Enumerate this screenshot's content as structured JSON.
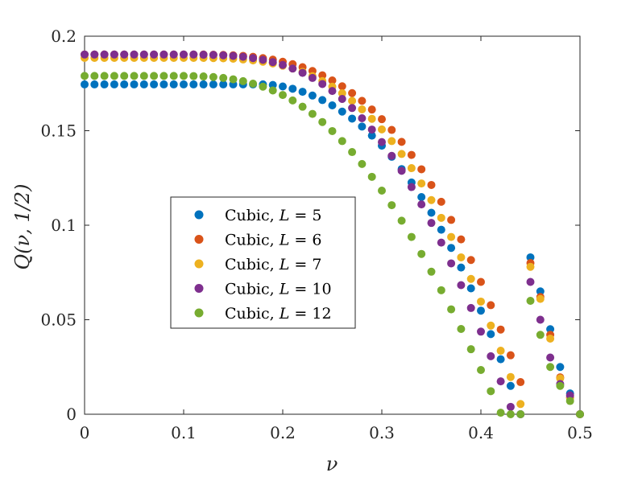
{
  "chart_data": {
    "type": "scatter",
    "title": "",
    "xlabel": "ν",
    "ylabel": "Q(ν, 1/2)",
    "xlim": [
      0,
      0.5
    ],
    "ylim": [
      0,
      0.2
    ],
    "xticks": [
      0,
      0.1,
      0.2,
      0.3,
      0.4,
      0.5
    ],
    "yticks": [
      0,
      0.05,
      0.1,
      0.15,
      0.2
    ],
    "xtick_labels": [
      "0",
      "0.1",
      "0.2",
      "0.3",
      "0.4",
      "0.5"
    ],
    "ytick_labels": [
      "0",
      "0.05",
      "0.1",
      "0.15",
      "0.2"
    ],
    "grid": false,
    "legend_position": "middle-left",
    "x": [
      0,
      0.01,
      0.02,
      0.03,
      0.04,
      0.05,
      0.06,
      0.07,
      0.08,
      0.09,
      0.1,
      0.11,
      0.12,
      0.13,
      0.14,
      0.15,
      0.16,
      0.17,
      0.18,
      0.19,
      0.2,
      0.21,
      0.22,
      0.23,
      0.24,
      0.25,
      0.26,
      0.27,
      0.28,
      0.29,
      0.3,
      0.31,
      0.32,
      0.33,
      0.34,
      0.35,
      0.36,
      0.37,
      0.38,
      0.39,
      0.4,
      0.41,
      0.42,
      0.43,
      0.44,
      0.45,
      0.46,
      0.47,
      0.48,
      0.49,
      0.5
    ],
    "series": [
      {
        "name": "Cubic, L = 5",
        "label_prefix": "Cubic, ",
        "label_var": "L",
        "label_value": "5",
        "color": "#0072BD",
        "values": [
          0.1745,
          0.1745,
          0.1745,
          0.1745,
          0.1745,
          0.1745,
          0.1745,
          0.1745,
          0.1745,
          0.1745,
          0.1745,
          0.1745,
          0.1745,
          0.1745,
          0.1745,
          0.1745,
          0.1745,
          0.1745,
          0.1745,
          0.1742,
          0.1734,
          0.1722,
          0.1706,
          0.1686,
          0.1662,
          0.1634,
          0.1601,
          0.1564,
          0.1522,
          0.1474,
          0.1421,
          0.1362,
          0.1297,
          0.1226,
          0.1149,
          0.1066,
          0.0976,
          0.088,
          0.0776,
          0.0666,
          0.0548,
          0.0424,
          0.0291,
          0.015,
          0.0,
          0.083,
          0.065,
          0.045,
          0.025,
          0.011,
          0.0
        ]
      },
      {
        "name": "Cubic, L = 6",
        "label_prefix": "Cubic, ",
        "label_var": "L",
        "label_value": "6",
        "color": "#D95319",
        "values": [
          0.1903,
          0.1903,
          0.1903,
          0.1903,
          0.1903,
          0.1903,
          0.1903,
          0.1903,
          0.1903,
          0.1903,
          0.1903,
          0.1903,
          0.1903,
          0.1902,
          0.1901,
          0.1899,
          0.1896,
          0.1891,
          0.1884,
          0.1876,
          0.1865,
          0.1852,
          0.1836,
          0.1816,
          0.1793,
          0.1766,
          0.1735,
          0.1699,
          0.1658,
          0.1612,
          0.1561,
          0.1504,
          0.1441,
          0.1372,
          0.1296,
          0.1213,
          0.1124,
          0.1028,
          0.0925,
          0.0816,
          0.07,
          0.0577,
          0.0448,
          0.0312,
          0.017,
          0.08,
          0.062,
          0.042,
          0.0195,
          0.009,
          0.0
        ]
      },
      {
        "name": "Cubic, L = 7",
        "label_prefix": "Cubic, ",
        "label_var": "L",
        "label_value": "7",
        "color": "#EDB120",
        "values": [
          0.1885,
          0.1885,
          0.1885,
          0.1885,
          0.1885,
          0.1885,
          0.1885,
          0.1885,
          0.1885,
          0.1885,
          0.1885,
          0.1885,
          0.1885,
          0.1884,
          0.1883,
          0.1881,
          0.1877,
          0.1872,
          0.1865,
          0.1856,
          0.1844,
          0.1829,
          0.1811,
          0.1789,
          0.1763,
          0.1733,
          0.1698,
          0.1658,
          0.1613,
          0.1563,
          0.1507,
          0.1445,
          0.1377,
          0.1302,
          0.1221,
          0.1133,
          0.1039,
          0.0938,
          0.083,
          0.0716,
          0.0596,
          0.0469,
          0.0336,
          0.0197,
          0.0054,
          0.078,
          0.061,
          0.04,
          0.019,
          0.0085,
          0.0
        ]
      },
      {
        "name": "Cubic, L = 10",
        "label_prefix": "Cubic, ",
        "label_var": "L",
        "label_value": "10",
        "color": "#7E2F8E",
        "values": [
          0.1903,
          0.1903,
          0.1903,
          0.1903,
          0.1903,
          0.1903,
          0.1903,
          0.1903,
          0.1903,
          0.1903,
          0.1903,
          0.1903,
          0.1902,
          0.1901,
          0.1899,
          0.1896,
          0.1891,
          0.1884,
          0.1875,
          0.1863,
          0.1848,
          0.1829,
          0.1806,
          0.1779,
          0.1747,
          0.171,
          0.1668,
          0.162,
          0.1566,
          0.1506,
          0.144,
          0.1367,
          0.1288,
          0.1202,
          0.111,
          0.1012,
          0.0908,
          0.0798,
          0.0683,
          0.0562,
          0.0437,
          0.0307,
          0.0174,
          0.0039,
          0.0,
          0.07,
          0.05,
          0.03,
          0.016,
          0.01,
          0.0
        ]
      },
      {
        "name": "Cubic, L = 12",
        "label_prefix": "Cubic, ",
        "label_var": "L",
        "label_value": "12",
        "color": "#77AC30",
        "values": [
          0.179,
          0.179,
          0.179,
          0.179,
          0.179,
          0.179,
          0.179,
          0.179,
          0.179,
          0.179,
          0.179,
          0.1789,
          0.1787,
          0.1784,
          0.1779,
          0.1772,
          0.1762,
          0.1749,
          0.1733,
          0.1713,
          0.1689,
          0.166,
          0.1627,
          0.1589,
          0.1546,
          0.1498,
          0.1445,
          0.1387,
          0.1324,
          0.1256,
          0.1183,
          0.1106,
          0.1024,
          0.0938,
          0.0848,
          0.0754,
          0.0656,
          0.0555,
          0.0451,
          0.0344,
          0.0234,
          0.0122,
          0.0008,
          0.0,
          0.0,
          0.06,
          0.042,
          0.025,
          0.015,
          0.007,
          0.0
        ]
      }
    ]
  }
}
